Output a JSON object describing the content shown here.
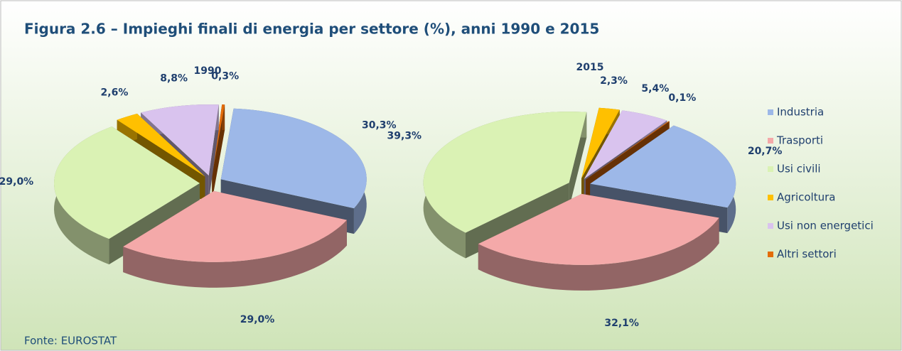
{
  "title": "Figura 2.6 – Impieghi finali di energia per settore (%), anni 1990 e 2015",
  "source": "Fonte: EUROSTAT",
  "chart_data": [
    {
      "type": "pie",
      "title": "1990",
      "categories": [
        "Industria",
        "Trasporti",
        "Usi civili",
        "Agricoltura",
        "Usi non energetici",
        "Altri settori"
      ],
      "values": [
        30.3,
        29.0,
        29.0,
        2.6,
        8.8,
        0.3
      ],
      "value_labels": [
        "30,3%",
        "29,0%",
        "29,0%",
        "2,6%",
        "8,8%",
        "0,3%"
      ],
      "colors": [
        "#9db8e8",
        "#f4a9a9",
        "#daf2b4",
        "#ffc000",
        "#d9c3ee",
        "#e36c0a"
      ]
    },
    {
      "type": "pie",
      "title": "2015",
      "categories": [
        "Industria",
        "Trasporti",
        "Usi civili",
        "Agricoltura",
        "Usi non energetici",
        "Altri settori"
      ],
      "values": [
        20.7,
        32.1,
        39.3,
        2.3,
        5.4,
        0.1
      ],
      "value_labels": [
        "20,7%",
        "32,1%",
        "39,3%",
        "2,3%",
        "5,4%",
        "0,1%"
      ],
      "colors": [
        "#9db8e8",
        "#f4a9a9",
        "#daf2b4",
        "#ffc000",
        "#d9c3ee",
        "#e36c0a"
      ],
      "legend": "right"
    }
  ]
}
